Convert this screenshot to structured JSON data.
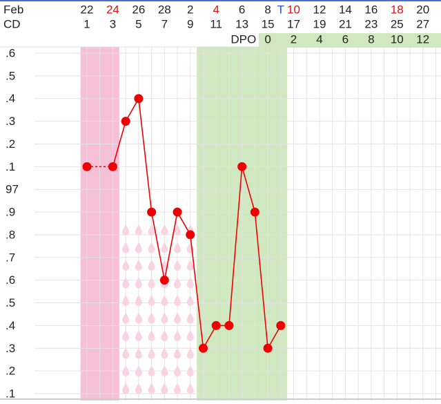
{
  "chart_data": {
    "type": "line",
    "month_label": "Feb",
    "cd_label": "CD",
    "dpo_label": "DPO",
    "dates": [
      22,
      24,
      26,
      28,
      2,
      4,
      6,
      8,
      10,
      12,
      14,
      16,
      18,
      20
    ],
    "date_colors": [
      "#222",
      "#e01010",
      "#222",
      "#222",
      "#222",
      "#e01010",
      "#222",
      "#222",
      "#e01010",
      "#222",
      "#222",
      "#222",
      "#e01010",
      "#222"
    ],
    "cycle_days": [
      1,
      3,
      5,
      7,
      9,
      11,
      13,
      15,
      17,
      19,
      21,
      23,
      25,
      27
    ],
    "dpo": [
      0,
      2,
      4,
      6,
      8,
      10,
      12
    ],
    "dpo_start_day": 15,
    "temp_shift_marker": "T",
    "x": [
      1,
      2,
      3,
      4,
      5,
      6,
      7,
      8,
      9,
      10,
      11,
      12,
      13,
      14,
      15,
      16
    ],
    "series": [
      {
        "color": "#ee0000",
        "values": [
          97.1,
          null,
          97.1,
          97.3,
          97.4,
          96.9,
          96.6,
          96.9,
          96.8,
          96.3,
          96.4,
          96.4,
          97.1,
          96.9,
          96.3,
          96.4
        ]
      }
    ],
    "xlim": [
      0.5,
      28.5
    ],
    "ylim": [
      96.1,
      97.6
    ],
    "yticks": [
      {
        "value": 97.6,
        "label": ".6"
      },
      {
        "value": 97.5,
        "label": ".5"
      },
      {
        "value": 97.4,
        "label": ".4"
      },
      {
        "value": 97.3,
        "label": ".3"
      },
      {
        "value": 97.2,
        "label": ".2"
      },
      {
        "value": 97.1,
        "label": ".1"
      },
      97,
      {
        "value": 96.9,
        "label": ".9"
      },
      {
        "value": 96.8,
        "label": ".8"
      },
      {
        "value": 96.7,
        "label": ".7"
      },
      {
        "value": 96.6,
        "label": ".6"
      },
      {
        "value": 96.5,
        "label": ".5"
      },
      {
        "value": 96.4,
        "label": ".4"
      },
      {
        "value": 96.3,
        "label": ".3"
      },
      {
        "value": 96.2,
        "label": ".2"
      },
      {
        "value": 96.1,
        "label": ".1"
      }
    ],
    "bands": [
      {
        "from": 1,
        "to": 3,
        "color": "#f6c0d6"
      },
      {
        "from": 10,
        "to": 16,
        "color": "#d0e8bf"
      }
    ],
    "fertile_signs": {
      "from": 4,
      "to": 9,
      "color": "#f9d3e2"
    },
    "grid": true
  }
}
